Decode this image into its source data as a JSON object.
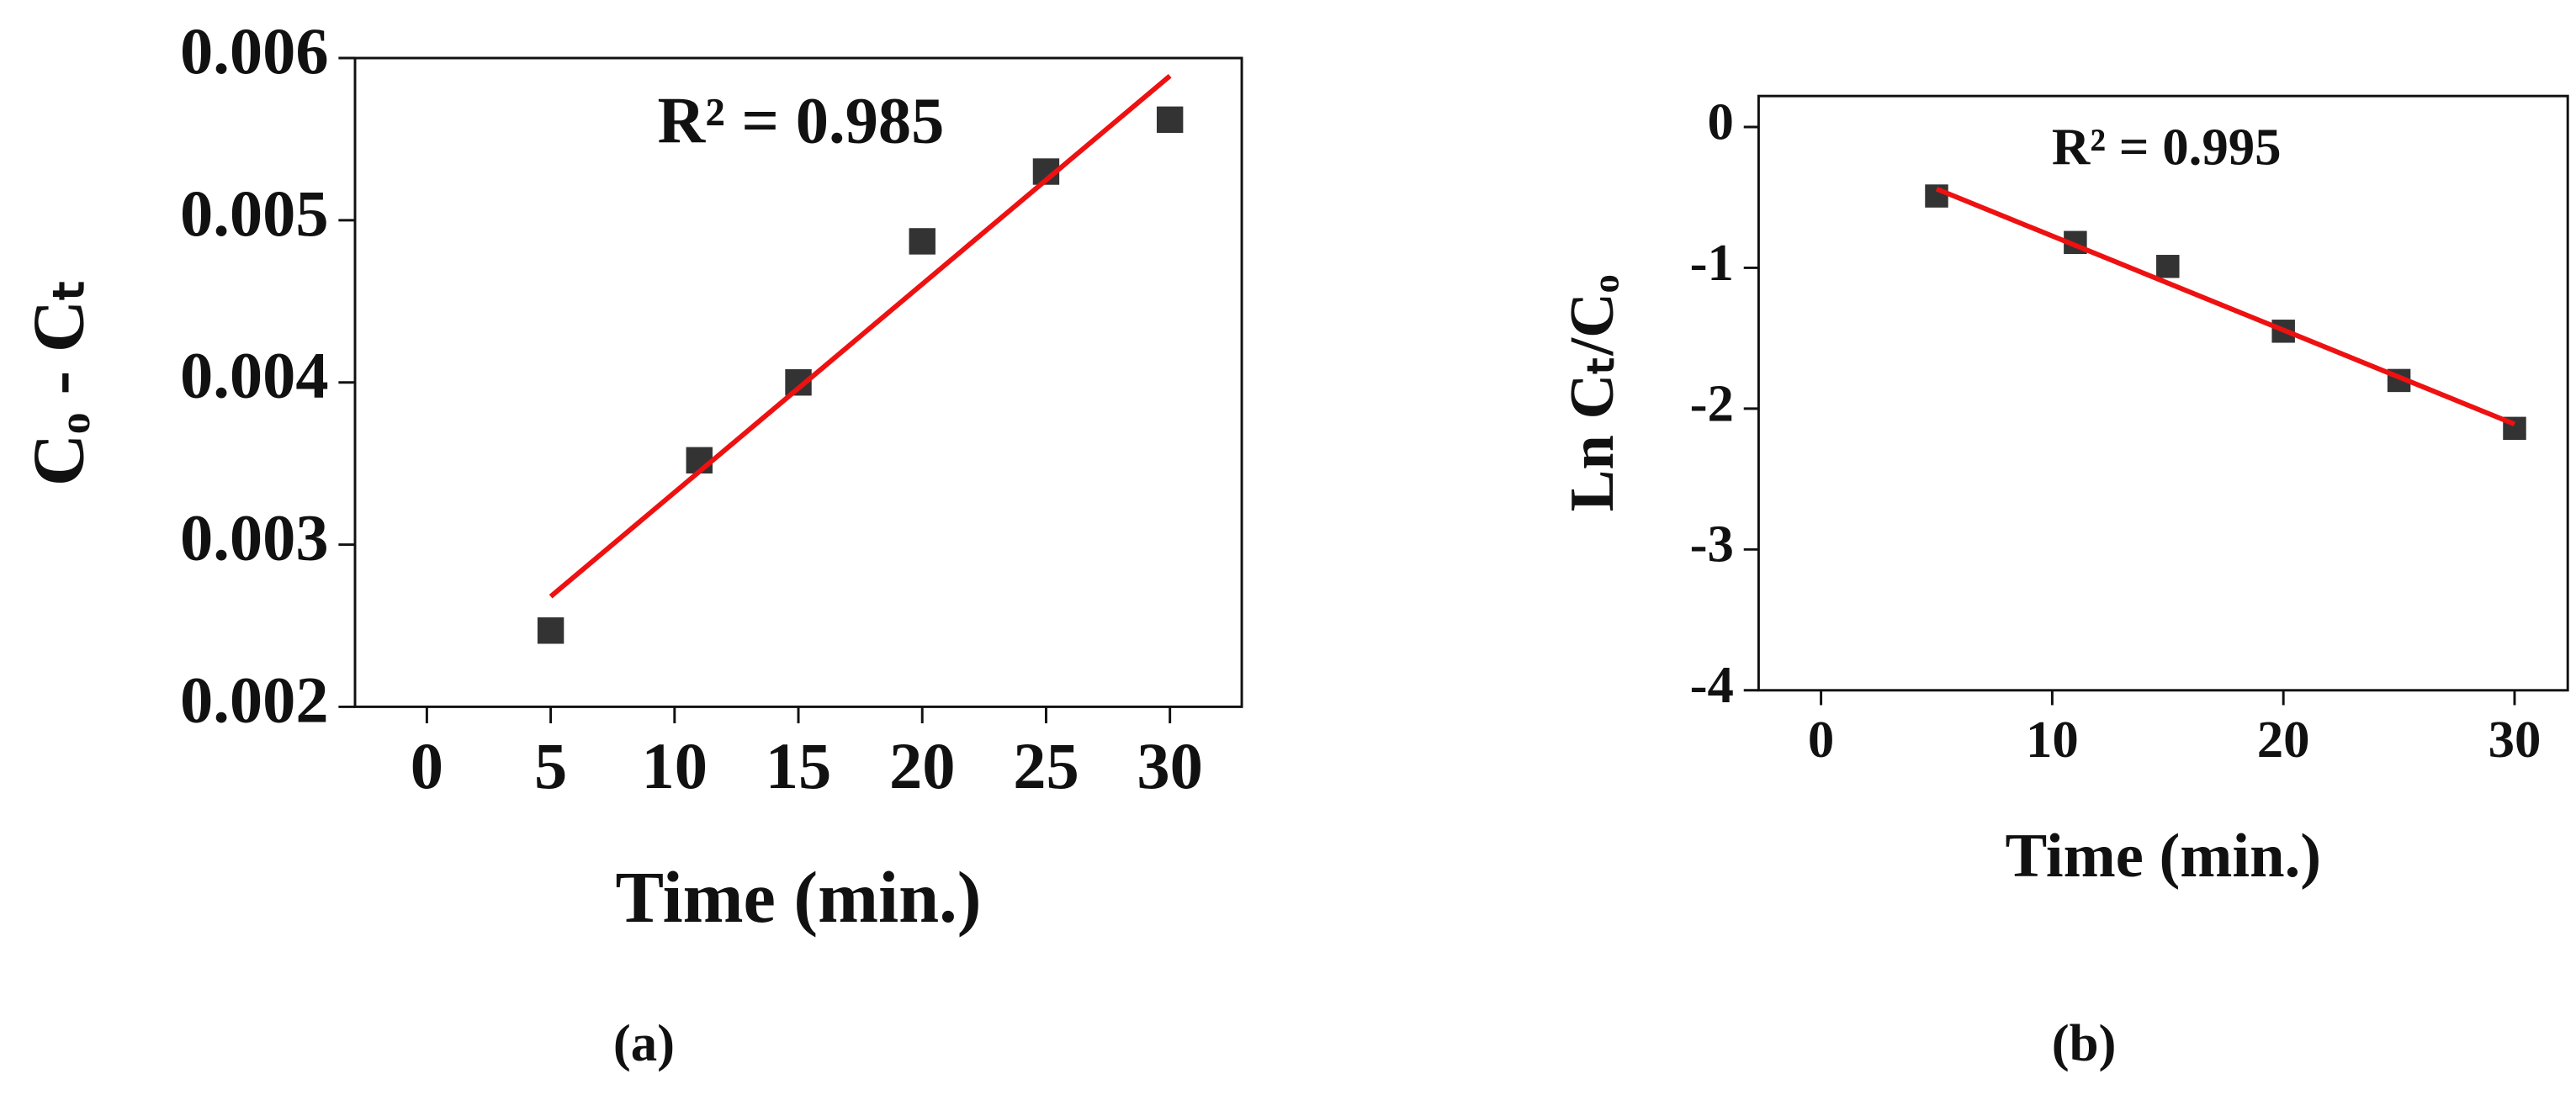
{
  "chart_data": [
    {
      "type": "scatter",
      "caption": "(a)",
      "x_label": "Time (min.)",
      "y_label": "Cₒ - Cₜ",
      "annotation": "R² = 0.985",
      "x": [
        5,
        11,
        15,
        20,
        25,
        30
      ],
      "values": [
        0.00247,
        0.00352,
        0.004,
        0.00487,
        0.0053,
        0.00562
      ],
      "color": "#333333",
      "fit": {
        "x": [
          5,
          30
        ],
        "values": [
          0.00268,
          0.00589
        ],
        "color": "#ee1111"
      },
      "xlim": [
        -2.9,
        32.9
      ],
      "xticks": [
        0,
        5,
        10,
        15,
        20,
        25,
        30
      ],
      "ylim": [
        0.002,
        0.006
      ],
      "yticks": [
        0.002,
        0.003,
        0.004,
        0.005,
        0.006
      ]
    },
    {
      "type": "scatter",
      "caption": "(b)",
      "x_label": "Time (min.)",
      "y_label": "Ln Cₜ/Cₒ",
      "annotation": "R² = 0.995",
      "x": [
        5,
        11,
        15,
        20,
        25,
        30
      ],
      "values": [
        -0.49,
        -0.82,
        -0.99,
        -1.45,
        -1.8,
        -2.14
      ],
      "color": "#333333",
      "fit": {
        "x": [
          5,
          30
        ],
        "values": [
          -0.44,
          -2.11
        ],
        "color": "#ee1111"
      },
      "xlim": [
        -2.7,
        32.3
      ],
      "xticks": [
        0,
        10,
        20,
        30
      ],
      "ylim": [
        -4,
        0.22
      ],
      "yticks": [
        -4,
        -3,
        -2,
        -1,
        0
      ]
    }
  ]
}
